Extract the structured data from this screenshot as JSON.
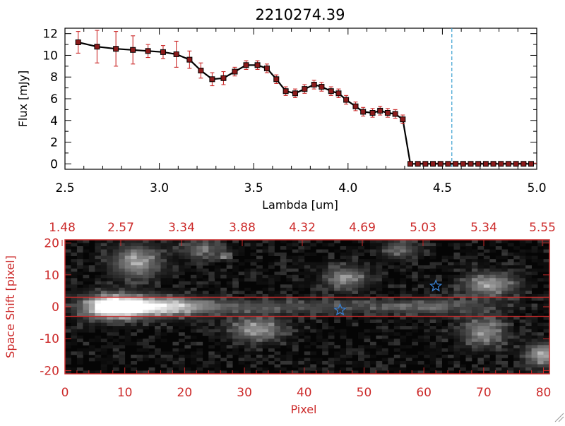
{
  "title": "2210274.39",
  "colors": {
    "axis": "#000000",
    "red": "#cc2a2a",
    "errorbar": "#cc2a2a",
    "marker": "#8b1a1a",
    "cutoff_line": "#3aa0d0",
    "star": "#3a7fd0"
  },
  "chart_data": [
    {
      "type": "line",
      "title": "2210274.39",
      "xlabel": "Lambda [um]",
      "ylabel": "Flux [mJy]",
      "xlim": [
        2.5,
        5.0
      ],
      "ylim": [
        -0.5,
        12.5
      ],
      "xticks": [
        "2.5",
        "3.0",
        "3.5",
        "4.0",
        "4.5",
        "5.0"
      ],
      "yticks": [
        "0",
        "2",
        "4",
        "6",
        "8",
        "10",
        "12"
      ],
      "vline": 4.55,
      "grid": false,
      "series": [
        {
          "x": [
            2.57,
            2.67,
            2.77,
            2.86,
            2.94,
            3.02,
            3.09,
            3.16,
            3.22,
            3.28,
            3.34,
            3.4,
            3.46,
            3.52,
            3.57,
            3.62,
            3.67,
            3.72,
            3.77,
            3.82,
            3.86,
            3.91,
            3.95,
            3.99,
            4.04,
            4.08,
            4.13,
            4.17,
            4.21,
            4.25,
            4.29,
            4.33,
            4.37,
            4.41,
            4.45,
            4.49,
            4.53,
            4.57,
            4.61,
            4.65,
            4.69,
            4.73,
            4.77,
            4.81,
            4.85,
            4.89,
            4.93,
            4.97
          ],
          "y": [
            11.2,
            10.8,
            10.6,
            10.5,
            10.4,
            10.3,
            10.1,
            9.6,
            8.6,
            7.8,
            7.9,
            8.5,
            9.1,
            9.1,
            8.8,
            7.8,
            6.7,
            6.5,
            6.9,
            7.3,
            7.1,
            6.7,
            6.5,
            5.9,
            5.3,
            4.8,
            4.7,
            4.9,
            4.7,
            4.6,
            4.1,
            0,
            0,
            0,
            0,
            0,
            0,
            0,
            0,
            0,
            0,
            0,
            0,
            0,
            0,
            0,
            0,
            0
          ],
          "yerr": [
            1.0,
            1.5,
            1.6,
            1.3,
            0.6,
            0.6,
            1.2,
            0.8,
            0.7,
            0.6,
            0.6,
            0.4,
            0.4,
            0.4,
            0.4,
            0.4,
            0.4,
            0.4,
            0.4,
            0.4,
            0.4,
            0.4,
            0.4,
            0.4,
            0.4,
            0.4,
            0.4,
            0.4,
            0.4,
            0.4,
            0.4,
            0,
            0,
            0,
            0,
            0,
            0,
            0,
            0,
            0,
            0,
            0,
            0,
            0,
            0,
            0,
            0,
            0
          ]
        }
      ]
    },
    {
      "type": "heatmap",
      "xlabel": "Pixel",
      "ylabel": "Space Shift [pixel]",
      "xlim": [
        0,
        81
      ],
      "ylim": [
        -21,
        21
      ],
      "xticks": [
        "0",
        "10",
        "20",
        "30",
        "40",
        "50",
        "60",
        "70",
        "80"
      ],
      "yticks": [
        "-20",
        "-10",
        "0",
        "10",
        "20"
      ],
      "top_ticks": [
        "1.48",
        "2.57",
        "3.34",
        "3.88",
        "4.32",
        "4.69",
        "5.03",
        "5.34",
        "5.55"
      ],
      "hlines": [
        3,
        -3
      ],
      "blobs": [
        {
          "x": 8,
          "y": 0,
          "amp": 1.0,
          "sx": 3.5,
          "sy": 2.6
        },
        {
          "x": 16,
          "y": 0,
          "amp": 0.55,
          "sx": 5,
          "sy": 2.2
        },
        {
          "x": 12,
          "y": 14,
          "amp": 0.55,
          "sx": 2.8,
          "sy": 3.5
        },
        {
          "x": 32,
          "y": -7,
          "amp": 0.55,
          "sx": 3,
          "sy": 2.5
        },
        {
          "x": 47,
          "y": 9,
          "amp": 0.45,
          "sx": 2.5,
          "sy": 2.5
        },
        {
          "x": 56,
          "y": 18,
          "amp": 0.35,
          "sx": 2,
          "sy": 2
        },
        {
          "x": 71,
          "y": 7,
          "amp": 0.55,
          "sx": 3,
          "sy": 2.5
        },
        {
          "x": 70,
          "y": -8,
          "amp": 0.5,
          "sx": 2.5,
          "sy": 3
        },
        {
          "x": 80,
          "y": -15,
          "amp": 0.6,
          "sx": 2,
          "sy": 2.5
        },
        {
          "x": 23,
          "y": 18,
          "amp": 0.35,
          "sx": 2.5,
          "sy": 2
        },
        {
          "x": 27,
          "y": 16,
          "amp": 0.5,
          "sx": 0.6,
          "sy": 0.8
        },
        {
          "x": 65,
          "y": 0,
          "amp": 0.22,
          "sx": 6,
          "sy": 2
        }
      ],
      "trace": {
        "x0": 5,
        "x1": 64,
        "y": 0,
        "amp": 0.35
      },
      "stars": [
        {
          "x": 46,
          "y": -1
        },
        {
          "x": 62,
          "y": 6.5
        }
      ]
    }
  ]
}
